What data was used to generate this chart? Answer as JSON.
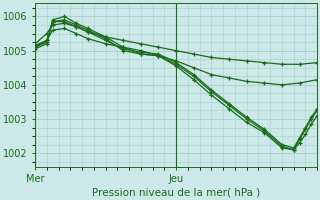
{
  "background_color": "#cce8e8",
  "grid_color": "#aacccc",
  "line_color": "#1a6b1a",
  "xlabel": "Pression niveau de la mer( hPa )",
  "yticks": [
    1002,
    1003,
    1004,
    1005,
    1006
  ],
  "ylim": [
    1001.6,
    1006.4
  ],
  "xlim": [
    0,
    48
  ],
  "mer_x": 0,
  "jeu_x": 24,
  "series": [
    [
      0,
      1005.2,
      2,
      1005.5,
      3,
      1005.75,
      5,
      1005.8,
      7,
      1005.7,
      9,
      1005.55,
      12,
      1005.4,
      15,
      1005.3,
      18,
      1005.2,
      21,
      1005.1,
      24,
      1005.0,
      27,
      1004.9,
      30,
      1004.8,
      33,
      1004.75,
      36,
      1004.7,
      39,
      1004.65,
      42,
      1004.6,
      45,
      1004.6,
      48,
      1004.65
    ],
    [
      0,
      1005.1,
      2,
      1005.3,
      3,
      1005.6,
      5,
      1005.65,
      7,
      1005.5,
      9,
      1005.35,
      12,
      1005.2,
      15,
      1005.1,
      18,
      1005.0,
      21,
      1004.85,
      24,
      1004.7,
      27,
      1004.5,
      30,
      1004.3,
      33,
      1004.2,
      36,
      1004.1,
      39,
      1004.05,
      42,
      1004.0,
      45,
      1004.05,
      48,
      1004.15
    ],
    [
      0,
      1005.05,
      2,
      1005.2,
      3,
      1005.9,
      5,
      1006.0,
      7,
      1005.8,
      9,
      1005.65,
      12,
      1005.4,
      15,
      1005.1,
      18,
      1004.9,
      21,
      1004.85,
      24,
      1004.55,
      27,
      1004.15,
      30,
      1003.7,
      33,
      1003.3,
      36,
      1002.9,
      39,
      1002.6,
      42,
      1002.15,
      44,
      1002.1,
      45,
      1002.3,
      46,
      1002.55,
      47,
      1002.85,
      48,
      1003.1
    ],
    [
      0,
      1005.1,
      2,
      1005.25,
      3,
      1005.85,
      5,
      1005.9,
      7,
      1005.75,
      9,
      1005.6,
      12,
      1005.35,
      15,
      1005.0,
      18,
      1004.9,
      21,
      1004.85,
      24,
      1004.6,
      27,
      1004.25,
      30,
      1003.8,
      33,
      1003.4,
      36,
      1003.0,
      39,
      1002.65,
      42,
      1002.2,
      44,
      1002.1,
      45,
      1002.4,
      46,
      1002.7,
      47,
      1003.0,
      48,
      1003.25
    ],
    [
      0,
      1005.15,
      2,
      1005.3,
      3,
      1005.85,
      5,
      1005.85,
      7,
      1005.7,
      9,
      1005.55,
      12,
      1005.3,
      15,
      1005.05,
      18,
      1004.95,
      21,
      1004.9,
      24,
      1004.65,
      27,
      1004.3,
      30,
      1003.85,
      33,
      1003.45,
      36,
      1003.05,
      39,
      1002.7,
      42,
      1002.25,
      44,
      1002.15,
      45,
      1002.45,
      46,
      1002.75,
      47,
      1003.05,
      48,
      1003.3
    ]
  ]
}
